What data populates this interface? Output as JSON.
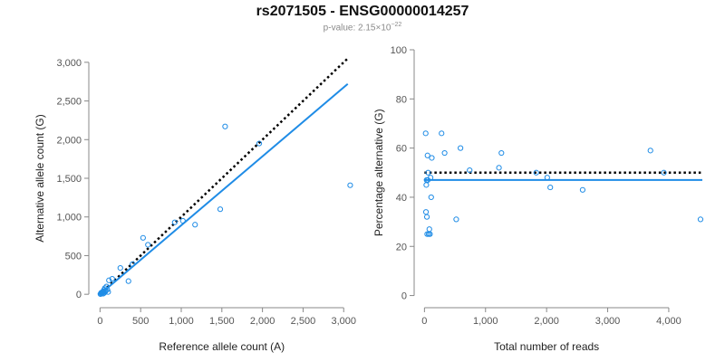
{
  "header": {
    "title": "rs2071505 - ENSG00000014257",
    "pvalue_prefix": "p-value: 2.15×10",
    "pvalue_exp": "−22"
  },
  "colors": {
    "points": "#1f8ce6",
    "fit": "#1f8ce6",
    "reference": "#000000",
    "axis": "#888888"
  },
  "chart_data": [
    {
      "type": "scatter",
      "title": "",
      "xlabel": "Reference allele count (A)",
      "ylabel": "Alternative allele count (G)",
      "xlim": [
        -60,
        3120
      ],
      "ylim": [
        -80,
        3080
      ],
      "xticks": [
        0,
        500,
        1000,
        1500,
        2000,
        2500,
        3000
      ],
      "xtick_labels": [
        "0",
        "500",
        "1,000",
        "1,500",
        "2,000",
        "2,500",
        "3,000"
      ],
      "yticks": [
        0,
        500,
        1000,
        1500,
        2000,
        2500,
        3000
      ],
      "ytick_labels": [
        "0",
        "500",
        "1,000",
        "1,500",
        "2,000",
        "2,500",
        "3,000"
      ],
      "points": [
        {
          "x": 5,
          "y": 3
        },
        {
          "x": 10,
          "y": 5
        },
        {
          "x": 15,
          "y": 20
        },
        {
          "x": 20,
          "y": 10
        },
        {
          "x": 25,
          "y": 15
        },
        {
          "x": 30,
          "y": 30
        },
        {
          "x": 35,
          "y": 25
        },
        {
          "x": 40,
          "y": 8
        },
        {
          "x": 45,
          "y": 40
        },
        {
          "x": 50,
          "y": 60
        },
        {
          "x": 55,
          "y": 20
        },
        {
          "x": 60,
          "y": 80
        },
        {
          "x": 65,
          "y": 35
        },
        {
          "x": 70,
          "y": 50
        },
        {
          "x": 80,
          "y": 100
        },
        {
          "x": 90,
          "y": 60
        },
        {
          "x": 100,
          "y": 30
        },
        {
          "x": 110,
          "y": 180
        },
        {
          "x": 150,
          "y": 200
        },
        {
          "x": 250,
          "y": 340
        },
        {
          "x": 350,
          "y": 170
        },
        {
          "x": 400,
          "y": 390
        },
        {
          "x": 530,
          "y": 730
        },
        {
          "x": 590,
          "y": 640
        },
        {
          "x": 920,
          "y": 930
        },
        {
          "x": 1020,
          "y": 950
        },
        {
          "x": 1170,
          "y": 900
        },
        {
          "x": 1480,
          "y": 1100
        },
        {
          "x": 1540,
          "y": 2170
        },
        {
          "x": 1960,
          "y": 1950
        },
        {
          "x": 3080,
          "y": 1410
        }
      ],
      "fit_line": {
        "x": [
          0,
          3050
        ],
        "y": [
          0,
          2720
        ]
      },
      "reference_line": {
        "x": [
          0,
          3050
        ],
        "y": [
          0,
          3050
        ]
      }
    },
    {
      "type": "scatter",
      "title": "",
      "xlabel": "Total number of reads",
      "ylabel": "Percentage alternative (G)",
      "xlim": [
        -50,
        4550
      ],
      "ylim": [
        -2,
        100
      ],
      "xticks": [
        0,
        1000,
        2000,
        3000,
        4000
      ],
      "xtick_labels": [
        "0",
        "1,000",
        "2,000",
        "3,000",
        "4,000"
      ],
      "yticks": [
        0,
        20,
        40,
        60,
        80,
        100
      ],
      "ytick_labels": [
        "0",
        "20",
        "40",
        "60",
        "80",
        "100"
      ],
      "points": [
        {
          "x": 20,
          "y": 66
        },
        {
          "x": 25,
          "y": 34
        },
        {
          "x": 30,
          "y": 45
        },
        {
          "x": 35,
          "y": 47
        },
        {
          "x": 40,
          "y": 32
        },
        {
          "x": 45,
          "y": 25
        },
        {
          "x": 50,
          "y": 57
        },
        {
          "x": 55,
          "y": 47
        },
        {
          "x": 60,
          "y": 50
        },
        {
          "x": 70,
          "y": 25
        },
        {
          "x": 80,
          "y": 27
        },
        {
          "x": 90,
          "y": 25
        },
        {
          "x": 100,
          "y": 48
        },
        {
          "x": 110,
          "y": 40
        },
        {
          "x": 120,
          "y": 56
        },
        {
          "x": 280,
          "y": 66
        },
        {
          "x": 330,
          "y": 58
        },
        {
          "x": 520,
          "y": 31
        },
        {
          "x": 590,
          "y": 60
        },
        {
          "x": 740,
          "y": 51
        },
        {
          "x": 1220,
          "y": 52
        },
        {
          "x": 1260,
          "y": 58
        },
        {
          "x": 1830,
          "y": 50
        },
        {
          "x": 2010,
          "y": 48
        },
        {
          "x": 2060,
          "y": 44
        },
        {
          "x": 2590,
          "y": 43
        },
        {
          "x": 3700,
          "y": 59
        },
        {
          "x": 3920,
          "y": 50
        },
        {
          "x": 4520,
          "y": 31
        }
      ],
      "fit_line": {
        "x": [
          0,
          4550
        ],
        "y": [
          47,
          47
        ]
      },
      "reference_line": {
        "x": [
          0,
          4550
        ],
        "y": [
          50,
          50
        ]
      }
    }
  ]
}
